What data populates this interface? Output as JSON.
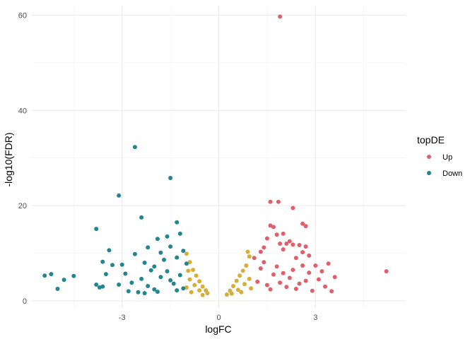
{
  "chart_data": {
    "type": "scatter",
    "xlabel": "logFC",
    "ylabel": "-log10(FDR)",
    "xlim": [
      -5.8,
      5.8
    ],
    "ylim": [
      -1.5,
      62
    ],
    "x_ticks": [
      -3,
      0,
      3
    ],
    "y_ticks": [
      0,
      20,
      40,
      60
    ],
    "grid": true,
    "legend": {
      "title": "topDE",
      "position": "right"
    },
    "series": [
      {
        "name": "Up",
        "color": "#E15F6A",
        "points": [
          [
            1.9,
            59.7
          ],
          [
            5.2,
            6.2
          ],
          [
            1.6,
            20.8
          ],
          [
            1.85,
            20.8
          ],
          [
            2.3,
            19.5
          ],
          [
            2.6,
            16.2
          ],
          [
            2.7,
            15.7
          ],
          [
            1.6,
            15.8
          ],
          [
            1.7,
            15.5
          ],
          [
            2.0,
            14.1
          ],
          [
            2.1,
            12.0
          ],
          [
            1.5,
            13.1
          ],
          [
            1.8,
            13.9
          ],
          [
            2.3,
            11.8
          ],
          [
            2.2,
            12.5
          ],
          [
            2.7,
            11.4
          ],
          [
            1.4,
            11.2
          ],
          [
            1.3,
            10.3
          ],
          [
            2.5,
            11.7
          ],
          [
            2.0,
            10.8
          ],
          [
            1.9,
            12.0
          ],
          [
            2.4,
            9.0
          ],
          [
            2.6,
            10.2
          ],
          [
            2.8,
            9.5
          ],
          [
            3.0,
            7.4
          ],
          [
            3.2,
            6.2
          ],
          [
            3.4,
            7.8
          ],
          [
            3.1,
            4.5
          ],
          [
            3.3,
            3.0
          ],
          [
            3.6,
            5.0
          ],
          [
            2.9,
            2.1
          ],
          [
            3.5,
            2.0
          ],
          [
            2.4,
            2.5
          ],
          [
            2.2,
            4.8
          ],
          [
            2.6,
            7.4
          ],
          [
            1.1,
            9.0
          ],
          [
            1.4,
            8.1
          ],
          [
            1.8,
            7.2
          ],
          [
            2.0,
            5.8
          ],
          [
            2.3,
            6.5
          ],
          [
            1.2,
            4.0
          ],
          [
            1.5,
            3.3
          ],
          [
            1.7,
            5.5
          ],
          [
            1.9,
            3.8
          ],
          [
            2.1,
            2.9
          ],
          [
            2.5,
            3.6
          ],
          [
            2.7,
            4.2
          ],
          [
            2.8,
            5.9
          ],
          [
            1.3,
            6.8
          ],
          [
            1.6,
            2.4
          ]
        ]
      },
      {
        "name": "Down",
        "color": "#22858F",
        "points": [
          [
            -2.6,
            32.3
          ],
          [
            -1.5,
            25.8
          ],
          [
            -3.1,
            22.1
          ],
          [
            -2.4,
            17.5
          ],
          [
            -1.3,
            16.5
          ],
          [
            -3.8,
            15.1
          ],
          [
            -1.2,
            14.1
          ],
          [
            -1.6,
            13.5
          ],
          [
            -1.9,
            13.0
          ],
          [
            -1.5,
            11.4
          ],
          [
            -3.4,
            10.6
          ],
          [
            -2.2,
            11.2
          ],
          [
            -1.1,
            10.5
          ],
          [
            -2.6,
            9.8
          ],
          [
            -1.8,
            10.1
          ],
          [
            -3.6,
            8.2
          ],
          [
            -3.0,
            7.6
          ],
          [
            -2.3,
            8.0
          ],
          [
            -1.7,
            8.6
          ],
          [
            -1.3,
            9.1
          ],
          [
            -3.3,
            7.5
          ],
          [
            -2.0,
            7.2
          ],
          [
            -1.0,
            7.8
          ],
          [
            -5.4,
            5.3
          ],
          [
            -5.2,
            5.6
          ],
          [
            -4.5,
            5.2
          ],
          [
            -4.8,
            4.4
          ],
          [
            -5.0,
            2.5
          ],
          [
            -3.8,
            3.4
          ],
          [
            -3.6,
            3.0
          ],
          [
            -3.5,
            5.6
          ],
          [
            -2.9,
            5.7
          ],
          [
            -2.7,
            3.8
          ],
          [
            -2.4,
            4.6
          ],
          [
            -2.2,
            3.1
          ],
          [
            -2.8,
            2.0
          ],
          [
            -2.5,
            1.8
          ],
          [
            -2.0,
            2.4
          ],
          [
            -1.8,
            5.0
          ],
          [
            -1.6,
            6.2
          ],
          [
            -1.4,
            3.6
          ],
          [
            -1.2,
            5.4
          ],
          [
            -1.1,
            2.6
          ],
          [
            -3.1,
            3.4
          ],
          [
            -2.1,
            6.4
          ],
          [
            -1.9,
            1.9
          ],
          [
            -1.5,
            4.3
          ],
          [
            -1.3,
            2.2
          ],
          [
            -3.7,
            2.8
          ],
          [
            -2.3,
            1.6
          ]
        ]
      },
      {
        "name": "",
        "color": "#D9AE36",
        "points": [
          [
            -1.0,
            9.9
          ],
          [
            -0.9,
            8.1
          ],
          [
            -0.8,
            6.5
          ],
          [
            -0.7,
            5.3
          ],
          [
            -0.6,
            4.1
          ],
          [
            -0.5,
            3.0
          ],
          [
            -0.4,
            2.2
          ],
          [
            -0.35,
            1.6
          ],
          [
            -0.9,
            4.5
          ],
          [
            -0.75,
            3.3
          ],
          [
            -0.6,
            2.2
          ],
          [
            -1.0,
            2.8
          ],
          [
            -0.95,
            6.3
          ],
          [
            -0.85,
            1.8
          ],
          [
            -0.5,
            1.2
          ],
          [
            0.25,
            1.3
          ],
          [
            0.35,
            2.1
          ],
          [
            0.45,
            3.1
          ],
          [
            0.55,
            4.2
          ],
          [
            0.65,
            5.3
          ],
          [
            0.75,
            6.3
          ],
          [
            0.85,
            7.4
          ],
          [
            0.95,
            9.3
          ],
          [
            0.9,
            10.3
          ],
          [
            0.95,
            4.6
          ],
          [
            0.8,
            3.5
          ],
          [
            0.6,
            2.3
          ],
          [
            0.4,
            1.5
          ],
          [
            1.0,
            2.6
          ],
          [
            0.7,
            1.8
          ]
        ]
      }
    ]
  }
}
